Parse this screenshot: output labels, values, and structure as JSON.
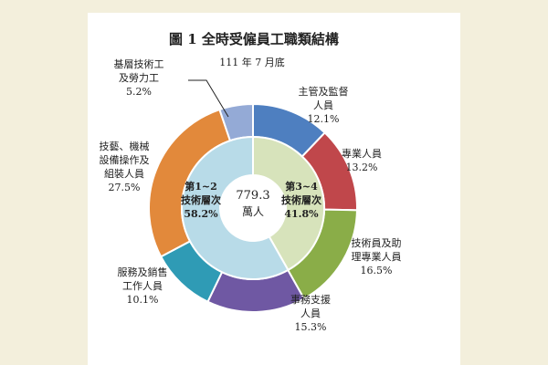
{
  "chart_data": {
    "type": "pie",
    "title": "圖 1  全時受僱員工職類結構",
    "subtitle": "111 年 7 月底",
    "center_value": "779.3",
    "center_unit": "萬人",
    "outer_ring": [
      {
        "label_lines": [
          "主管及監督",
          "人員"
        ],
        "value": 12.1,
        "pct_label": "12.1%",
        "color": "#4e7fc0"
      },
      {
        "label_lines": [
          "專業人員"
        ],
        "value": 13.2,
        "pct_label": "13.2%",
        "color": "#c0474b"
      },
      {
        "label_lines": [
          "技術員及助",
          "理專業人員"
        ],
        "value": 16.5,
        "pct_label": "16.5%",
        "color": "#8aad48"
      },
      {
        "label_lines": [
          "事務支援",
          "人員"
        ],
        "value": 15.3,
        "pct_label": "15.3%",
        "color": "#6f58a3"
      },
      {
        "label_lines": [
          "服務及銷售",
          "工作人員"
        ],
        "value": 10.1,
        "pct_label": "10.1%",
        "color": "#2f9bb5"
      },
      {
        "label_lines": [
          "技藝、機械",
          "設備操作及",
          "組裝人員"
        ],
        "value": 27.5,
        "pct_label": "27.5%",
        "color": "#e2893b"
      },
      {
        "label_lines": [
          "基層技術工",
          "及勞力工"
        ],
        "value": 5.2,
        "pct_label": "5.2%",
        "color": "#94aad6"
      }
    ],
    "inner_ring": [
      {
        "label_lines": [
          "第3~4",
          "技術層次"
        ],
        "value": 41.8,
        "pct_label": "41.8%",
        "color": "#d7e3bb"
      },
      {
        "label_lines": [
          "第1~2",
          "技術層次"
        ],
        "value": 58.2,
        "pct_label": "58.2%",
        "color": "#b8dbe8"
      }
    ]
  }
}
